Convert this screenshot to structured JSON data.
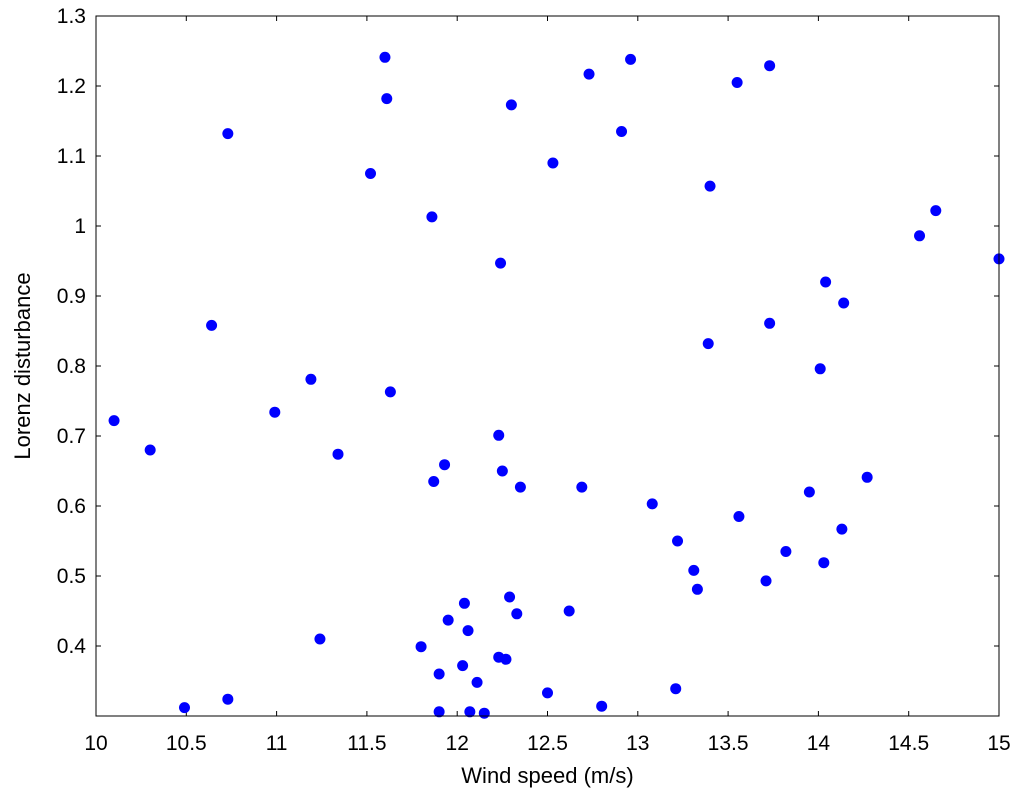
{
  "chart_data": {
    "type": "scatter",
    "title": "",
    "xlabel": "Wind speed (m/s)",
    "ylabel": "Lorenz disturbance",
    "xlim": [
      10,
      15
    ],
    "ylim": [
      0.3,
      1.3
    ],
    "xticks": [
      "10",
      "10.5",
      "11",
      "11.5",
      "12",
      "12.5",
      "13",
      "13.5",
      "14",
      "14.5",
      "15"
    ],
    "yticks": [
      "0.4",
      "0.5",
      "0.6",
      "0.7",
      "0.8",
      "0.9",
      "1",
      "1.1",
      "1.2",
      "1.3"
    ],
    "grid": false,
    "legend": "none",
    "marker_color": "#0000ff",
    "series": [
      {
        "points": [
          [
            10.1,
            0.722
          ],
          [
            10.3,
            0.68
          ],
          [
            10.49,
            0.312
          ],
          [
            10.64,
            0.858
          ],
          [
            10.73,
            0.324
          ],
          [
            10.73,
            1.132
          ],
          [
            10.99,
            0.734
          ],
          [
            11.19,
            0.781
          ],
          [
            11.24,
            0.41
          ],
          [
            11.34,
            0.674
          ],
          [
            11.52,
            1.075
          ],
          [
            11.6,
            1.241
          ],
          [
            11.61,
            1.182
          ],
          [
            11.63,
            0.763
          ],
          [
            11.8,
            0.399
          ],
          [
            11.86,
            1.013
          ],
          [
            11.87,
            0.635
          ],
          [
            11.9,
            0.36
          ],
          [
            11.9,
            0.306
          ],
          [
            11.93,
            0.659
          ],
          [
            11.95,
            0.437
          ],
          [
            12.03,
            0.372
          ],
          [
            12.04,
            0.461
          ],
          [
            12.06,
            0.422
          ],
          [
            12.07,
            0.306
          ],
          [
            12.11,
            0.348
          ],
          [
            12.15,
            0.304
          ],
          [
            12.23,
            0.701
          ],
          [
            12.23,
            0.384
          ],
          [
            12.24,
            0.947
          ],
          [
            12.25,
            0.65
          ],
          [
            12.27,
            0.381
          ],
          [
            12.29,
            0.47
          ],
          [
            12.3,
            1.173
          ],
          [
            12.33,
            0.446
          ],
          [
            12.35,
            0.627
          ],
          [
            12.5,
            0.333
          ],
          [
            12.53,
            1.09
          ],
          [
            12.62,
            0.45
          ],
          [
            12.69,
            0.627
          ],
          [
            12.73,
            1.217
          ],
          [
            12.8,
            0.314
          ],
          [
            12.91,
            1.135
          ],
          [
            12.96,
            1.238
          ],
          [
            13.08,
            0.603
          ],
          [
            13.21,
            0.339
          ],
          [
            13.22,
            0.55
          ],
          [
            13.31,
            0.508
          ],
          [
            13.33,
            0.481
          ],
          [
            13.39,
            0.832
          ],
          [
            13.4,
            1.057
          ],
          [
            13.55,
            1.205
          ],
          [
            13.56,
            0.585
          ],
          [
            13.71,
            0.493
          ],
          [
            13.73,
            0.861
          ],
          [
            13.73,
            1.229
          ],
          [
            13.82,
            0.535
          ],
          [
            13.95,
            0.62
          ],
          [
            14.01,
            0.796
          ],
          [
            14.03,
            0.519
          ],
          [
            14.04,
            0.92
          ],
          [
            14.13,
            0.567
          ],
          [
            14.14,
            0.89
          ],
          [
            14.27,
            0.641
          ],
          [
            14.56,
            0.986
          ],
          [
            14.65,
            1.022
          ],
          [
            15.0,
            0.953
          ]
        ]
      }
    ]
  }
}
